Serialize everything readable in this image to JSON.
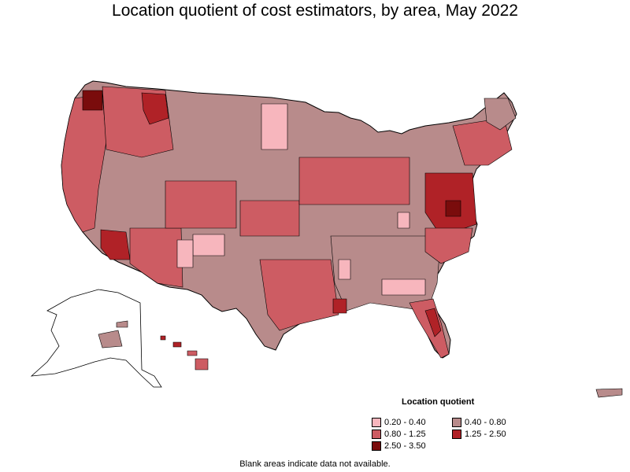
{
  "title": "Location quotient of cost estimators, by area, May 2022",
  "legend": {
    "title": "Location quotient",
    "items": [
      {
        "label": "0.20 - 0.40",
        "color": "#f7b6bd"
      },
      {
        "label": "0.40 - 0.80",
        "color": "#b88b8b"
      },
      {
        "label": "0.80 - 1.25",
        "color": "#cd5c63"
      },
      {
        "label": "1.25 - 2.50",
        "color": "#b02227"
      },
      {
        "label": "2.50 - 3.50",
        "color": "#7a0c0c"
      }
    ]
  },
  "footnote": "Blank areas indicate data not available.",
  "colors": {
    "border": "#000000",
    "no_data": "#ffffff"
  }
}
